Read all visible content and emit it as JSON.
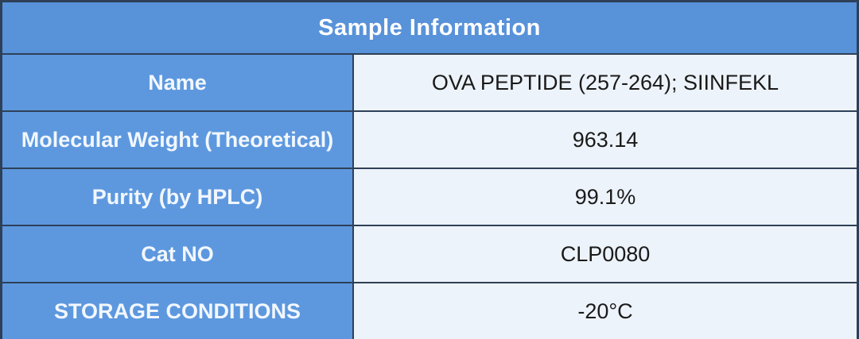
{
  "table": {
    "title": "Sample Information",
    "rows": [
      {
        "label": "Name",
        "value": "OVA PEPTIDE (257-264); SIINFEKL"
      },
      {
        "label": "Molecular Weight (Theoretical)",
        "value": "963.14"
      },
      {
        "label": "Purity (by HPLC)",
        "value": "99.1%"
      },
      {
        "label": "Cat NO",
        "value": "CLP0080"
      },
      {
        "label": "STORAGE CONDITIONS",
        "value": "-20°C"
      }
    ],
    "colors": {
      "header_bg": "#5892d9",
      "label_bg": "#5d98df",
      "value_bg": "#edf3fa",
      "grid_border": "#2e4057",
      "header_text": "#ffffff",
      "label_text": "#f2f7fd",
      "value_text": "#1a1a1a"
    }
  }
}
